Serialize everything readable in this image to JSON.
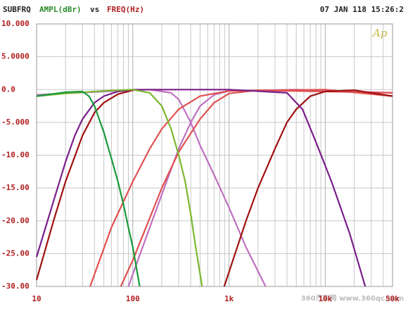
{
  "chart_data": {
    "type": "line",
    "header": {
      "name": "SUBFRQ",
      "ylabel": "AMPL(dBr)",
      "vs": "vs",
      "xlabel": "FREQ(Hz)",
      "date": "07 JAN 118 15:26:2"
    },
    "logo": "Ap",
    "watermark": "360汽车网 www.360qc.com",
    "xlog": true,
    "grid": true,
    "xlim": [
      10,
      50000
    ],
    "ylim": [
      -30,
      10
    ],
    "xticks": [
      10,
      100,
      {
        "value": 1000,
        "label": "1k"
      },
      {
        "value": 10000,
        "label": "10k"
      },
      {
        "value": 50000,
        "label": "50k"
      }
    ],
    "xgrid": [
      20,
      30,
      40,
      50,
      60,
      70,
      80,
      90,
      200,
      300,
      400,
      500,
      600,
      700,
      800,
      900,
      2000,
      3000,
      4000,
      5000,
      6000,
      7000,
      8000,
      9000,
      20000,
      30000,
      40000
    ],
    "yticks": [
      {
        "value": 10,
        "label": "10.000"
      },
      {
        "value": 5,
        "label": "5.0000"
      },
      {
        "value": 0,
        "label": "0.0"
      },
      {
        "value": -5,
        "label": "-5.000"
      },
      {
        "value": -10,
        "label": "-10.00"
      },
      {
        "value": -15,
        "label": "-15.00"
      },
      {
        "value": -20,
        "label": "-20.00"
      },
      {
        "value": -25,
        "label": "-25.00"
      },
      {
        "value": -30,
        "label": "-30.00"
      }
    ],
    "series": [
      {
        "color": "#c070c0",
        "x": [
          10,
          50,
          150,
          250,
          300,
          400,
          500,
          700,
          1000,
          1500,
          2400
        ],
        "values": [
          -0.8,
          -0.3,
          0,
          -0.5,
          -1.5,
          -5,
          -8.5,
          -13,
          -18,
          -24,
          -30
        ]
      },
      {
        "color": "#c070c0",
        "x": [
          90,
          150,
          200,
          300,
          400,
          500,
          700,
          1000,
          5000,
          50000
        ],
        "values": [
          -30,
          -21,
          -16,
          -9,
          -5,
          -2.5,
          -0.8,
          -0.2,
          0,
          -0.5
        ]
      },
      {
        "color": "#e05050",
        "x": [
          36,
          60,
          100,
          150,
          200,
          300,
          500,
          1000,
          10000,
          50000
        ],
        "values": [
          -30,
          -21,
          -14,
          -9,
          -6,
          -3,
          -1,
          -0.2,
          0,
          -1
        ]
      },
      {
        "color": "#e05050",
        "x": [
          75,
          100,
          200,
          300,
          500,
          700,
          1000,
          2000,
          50000
        ],
        "values": [
          -30,
          -26,
          -15,
          -9.5,
          -4.5,
          -2,
          -0.6,
          -0.1,
          -0.5
        ]
      },
      {
        "color": "#a01010",
        "x": [
          10,
          15,
          20,
          30,
          40,
          50,
          70,
          100
        ],
        "values": [
          -29,
          -20,
          -14,
          -7,
          -3.5,
          -2,
          -0.7,
          -0.1
        ]
      },
      {
        "color": "#a01010",
        "x": [
          890,
          1500,
          2000,
          3000,
          4000,
          5000,
          7000,
          10000,
          20000,
          50000
        ],
        "values": [
          -30,
          -20,
          -15,
          -9,
          -5,
          -3,
          -1,
          -0.3,
          -0.1,
          -1
        ]
      },
      {
        "color": "#7a1f8a",
        "x": [
          10,
          15,
          20,
          25,
          30,
          40,
          50,
          70,
          100,
          1000,
          4000,
          5800,
          8000,
          11600,
          18000,
          26000
        ],
        "values": [
          -25.5,
          -17,
          -11,
          -7,
          -4.5,
          -2,
          -1,
          -0.3,
          0,
          0,
          -0.5,
          -3,
          -8,
          -14,
          -22,
          -30
        ]
      },
      {
        "color": "#7ab830",
        "x": [
          10,
          20,
          50,
          100,
          150,
          200,
          250,
          300,
          350,
          400,
          450,
          525
        ],
        "values": [
          -1,
          -0.6,
          -0.2,
          0,
          -0.5,
          -2.5,
          -6,
          -10,
          -14,
          -19,
          -24,
          -30
        ]
      },
      {
        "color": "#1a9a3a",
        "x": [
          10,
          20,
          30,
          35,
          40,
          50,
          60,
          70,
          80,
          90,
          100,
          118
        ],
        "values": [
          -1,
          -0.4,
          -0.3,
          -1,
          -2.5,
          -6.5,
          -10.5,
          -14,
          -17.5,
          -21,
          -24,
          -30
        ]
      }
    ]
  }
}
